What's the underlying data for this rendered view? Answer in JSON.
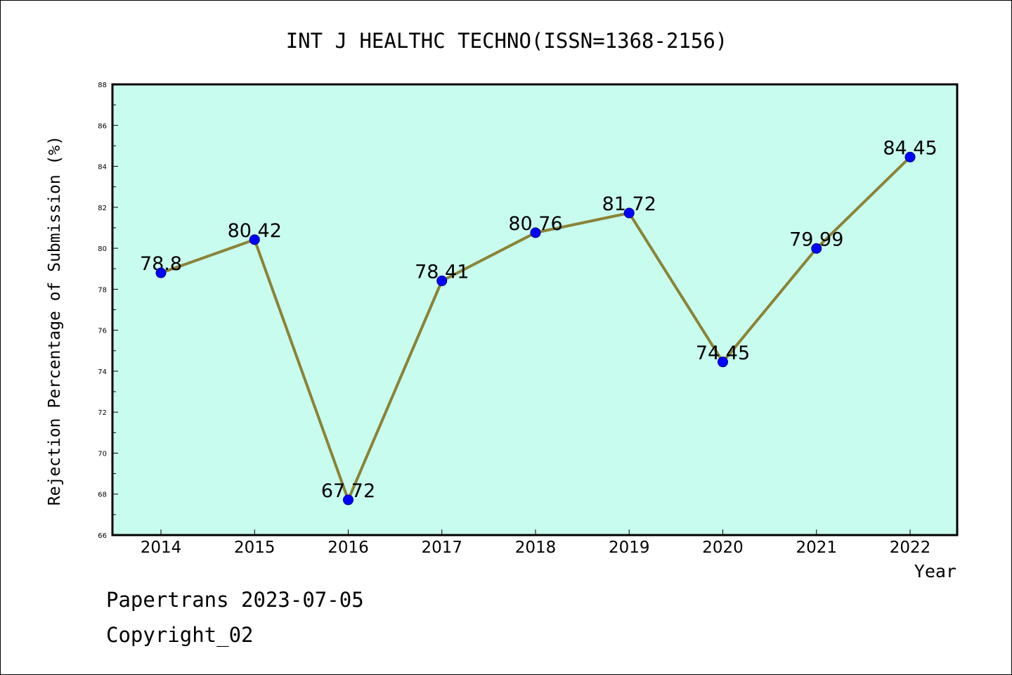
{
  "chart_data": {
    "type": "line",
    "title": "INT J HEALTHC TECHNO(ISSN=1368-2156)",
    "xlabel": "Year",
    "ylabel": "Rejection Percentage of Submission (%)",
    "categories": [
      "2014",
      "2015",
      "2016",
      "2017",
      "2018",
      "2019",
      "2020",
      "2021",
      "2022"
    ],
    "values": [
      78.8,
      80.42,
      67.72,
      78.41,
      80.76,
      81.72,
      74.45,
      79.99,
      84.45
    ],
    "data_labels": [
      "78.8",
      "80.42",
      "67.72",
      "78.41",
      "80.76",
      "81.72",
      "74.45",
      "79.99",
      "84.45"
    ],
    "ylim": [
      66,
      88
    ],
    "yticks": [
      "66",
      "68",
      "70",
      "72",
      "74",
      "76",
      "78",
      "80",
      "82",
      "84",
      "86",
      "88"
    ],
    "grid": false,
    "legend": "none",
    "colors": {
      "plot_background": "#c8fcee",
      "line": "#8b8336",
      "marker": "#0000ff"
    }
  },
  "footer": {
    "line1": "Papertrans 2023-07-05",
    "line2": "Copyright_02"
  }
}
